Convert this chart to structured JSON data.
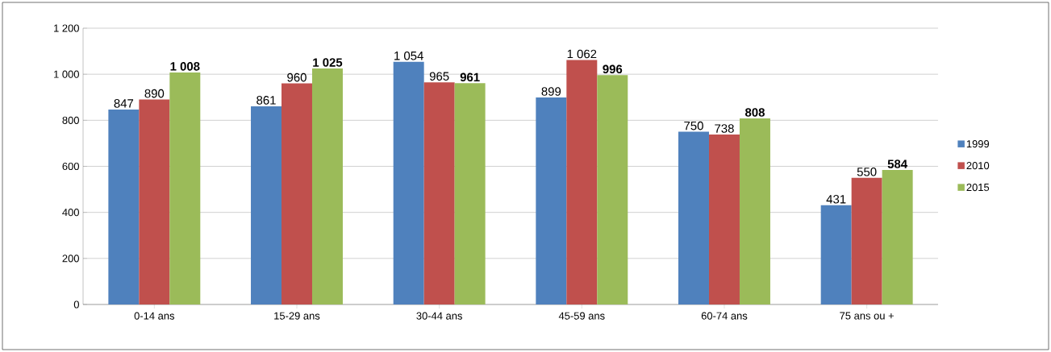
{
  "chart_data": {
    "type": "bar",
    "categories": [
      "0-14 ans",
      "15-29 ans",
      "30-44 ans",
      "45-59 ans",
      "60-74 ans",
      "75 ans ou +"
    ],
    "series": [
      {
        "name": "1999",
        "color": "#4f81bd",
        "values": [
          847,
          861,
          1054,
          899,
          750,
          431
        ],
        "value_labels": [
          "847",
          "861",
          "1 054",
          "899",
          "750",
          "431"
        ]
      },
      {
        "name": "2010",
        "color": "#c0504d",
        "values": [
          890,
          960,
          965,
          1062,
          738,
          550
        ],
        "value_labels": [
          "890",
          "960",
          "965",
          "1 062",
          "738",
          "550"
        ]
      },
      {
        "name": "2015",
        "color": "#9bbb59",
        "values": [
          1008,
          1025,
          961,
          996,
          808,
          584
        ],
        "value_labels": [
          "**1 008**",
          "**1 025**",
          "**961**",
          "**996**",
          "**808**",
          "**584**"
        ]
      }
    ],
    "ylim": [
      0,
      1200
    ],
    "yticks": [
      0,
      200,
      400,
      600,
      800,
      {
        "value": 1000,
        "label": "1 000"
      },
      {
        "value": 1200,
        "label": "1 200"
      }
    ],
    "grid": "y",
    "legend": "right"
  }
}
